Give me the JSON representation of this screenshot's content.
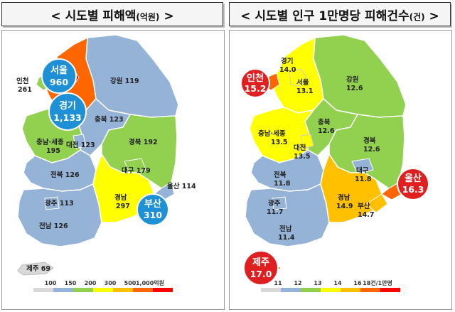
{
  "left_panel": {
    "title": "< 시도별 피해액",
    "title_unit": "(억원)",
    "title_close": " >",
    "regions": {
      "seoul": {
        "name": "서울",
        "value": "960"
      },
      "gyeonggi": {
        "name": "경기",
        "value": "1,133"
      },
      "incheon": {
        "name": "인천",
        "value": "261"
      },
      "gangwon": {
        "name": "강원",
        "value": "119"
      },
      "chungbuk": {
        "name": "충북",
        "value": "123"
      },
      "chungnam": {
        "name": "충남·세종",
        "value": "195"
      },
      "daejeon": {
        "name": "대전",
        "value": "123"
      },
      "gyeongbuk": {
        "name": "경북",
        "value": "192"
      },
      "daegu": {
        "name": "대구",
        "value": "179"
      },
      "jeonbuk": {
        "name": "전북",
        "value": "126"
      },
      "ulsan": {
        "name": "울산",
        "value": "114"
      },
      "gwangju": {
        "name": "광주",
        "value": "113"
      },
      "gyeongnam": {
        "name": "경남",
        "value": "297"
      },
      "busan": {
        "name": "부산",
        "value": "310"
      },
      "jeonnam": {
        "name": "전남",
        "value": "126"
      },
      "jeju": {
        "name": "제주",
        "value": "69"
      }
    },
    "legend": {
      "labels": [
        "100",
        "150",
        "200",
        "300",
        "500",
        "1,000억원"
      ],
      "colors": [
        "#d9d9d9",
        "#95b3d7",
        "#92d050",
        "#ffff00",
        "#ffc000",
        "#ff6600",
        "#ff0000"
      ]
    }
  },
  "right_panel": {
    "title": "< 시도별 인구 1만명당 피해건수",
    "title_unit": "(건)",
    "title_close": " >",
    "regions": {
      "gyeonggi": {
        "name": "경기",
        "value": "14.0"
      },
      "incheon": {
        "name": "인천",
        "value": "15.2"
      },
      "seoul": {
        "name": "서울",
        "value": "13.1"
      },
      "gangwon": {
        "name": "강원",
        "value": "12.6"
      },
      "chungbuk": {
        "name": "충북",
        "value": "12.6"
      },
      "chungnam": {
        "name": "충남·세종",
        "value": "13.5"
      },
      "daejeon": {
        "name": "대전",
        "value": "13.5"
      },
      "gyeongbuk": {
        "name": "경북",
        "value": "12.6"
      },
      "jeonbuk": {
        "name": "전북",
        "value": "11.8"
      },
      "daegu": {
        "name": "대구",
        "value": "11.8"
      },
      "ulsan": {
        "name": "울산",
        "value": "16.3"
      },
      "gwangju": {
        "name": "광주",
        "value": "11.7"
      },
      "gyeongnam": {
        "name": "경남",
        "value": "14.9"
      },
      "busan": {
        "name": "부산",
        "value": "14.7"
      },
      "jeonnam": {
        "name": "전남",
        "value": "11.4"
      },
      "jeju": {
        "name": "제주",
        "value": "17.0"
      }
    },
    "legend": {
      "labels": [
        "11",
        "12",
        "13",
        "14",
        "16",
        "18건/1만명"
      ],
      "colors": [
        "#d9d9d9",
        "#95b3d7",
        "#92d050",
        "#ffff00",
        "#ffc000",
        "#ff6600",
        "#ff0000"
      ]
    }
  }
}
